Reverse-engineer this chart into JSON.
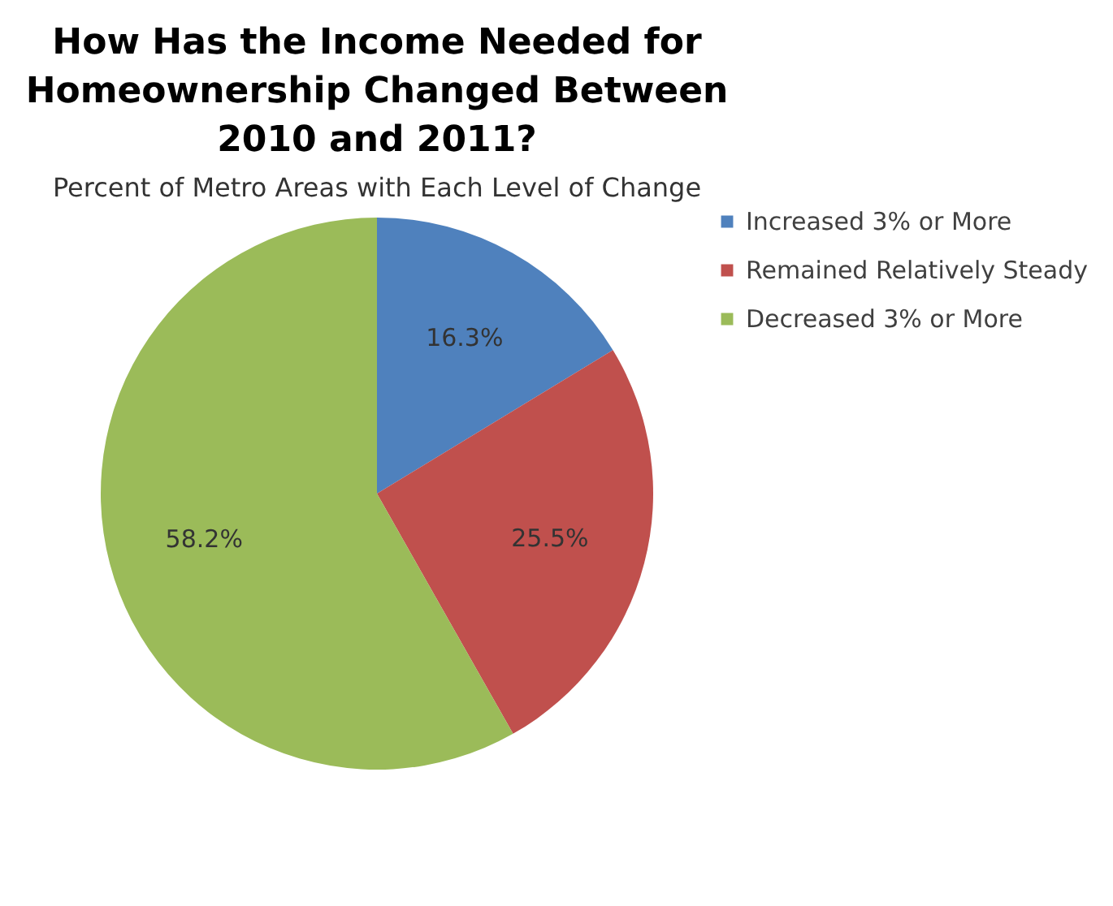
{
  "chart_data": {
    "type": "pie",
    "title": "How Has the Income Needed for Homeownership Changed Between 2010 and 2011?",
    "subtitle": "Percent of Metro Areas with Each Level of Change",
    "categories": [
      "Increased 3% or More",
      "Remained Relatively Steady",
      "Decreased 3% or More"
    ],
    "values": [
      16.3,
      25.5,
      58.2
    ],
    "colors": [
      "#4f81bd",
      "#c0504d",
      "#9bbb59"
    ],
    "value_labels": [
      "16.3%",
      "25.5%",
      "58.2%"
    ],
    "legend": "right"
  }
}
